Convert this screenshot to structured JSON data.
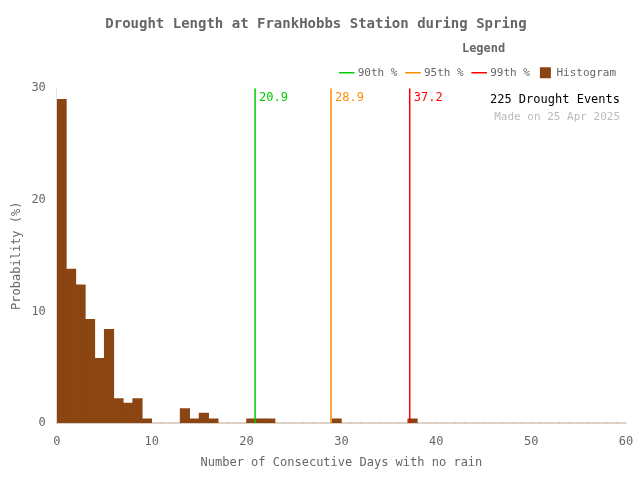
{
  "chart_data": {
    "type": "histogram",
    "title": "Drought Length at FrankHobbs Station during Spring",
    "xlabel": "Number of Consecutive Days with no rain",
    "ylabel": "Probability (%)",
    "bins": [
      0,
      1,
      2,
      3,
      4,
      5,
      6,
      7,
      8,
      9,
      10,
      11,
      12,
      13,
      14,
      15,
      16,
      17,
      18,
      19,
      20,
      21,
      22,
      23,
      24,
      25,
      26,
      27,
      28,
      29,
      30,
      31,
      32,
      33,
      34,
      35,
      36,
      37,
      38,
      39,
      40,
      41,
      42,
      43,
      44,
      45,
      46,
      47,
      48,
      49,
      50,
      51,
      52,
      53,
      54,
      55,
      56,
      57,
      58,
      59,
      60
    ],
    "series": [
      {
        "name": "90th %",
        "type": "vline",
        "color": "#00CC00",
        "x": 20.9,
        "data_labels": true
      },
      {
        "name": "95th %",
        "type": "vline",
        "color": "#FF8C00",
        "x": 28.9,
        "data_labels": true
      },
      {
        "name": "99th %",
        "type": "vline",
        "color": "#FF0000",
        "x": 37.2,
        "data_labels": true
      },
      {
        "name": "Histogram",
        "type": "bar",
        "color": "#8B4513",
        "values": [
          29.0,
          13.8,
          12.4,
          9.3,
          5.8,
          8.4,
          2.2,
          1.8,
          2.2,
          0.4,
          0.0,
          0.0,
          0.0,
          1.3,
          0.4,
          0.9,
          0.4,
          0.0,
          0.0,
          0.0,
          0.4,
          0.4,
          0.4,
          0.0,
          0.0,
          0.0,
          0.0,
          0.0,
          0.0,
          0.4,
          0.0,
          0.0,
          0.0,
          0.0,
          0.0,
          0.0,
          0.0,
          0.4,
          0.0,
          0.0,
          0.0,
          0.0,
          0.0,
          0.0,
          0.0,
          0.0,
          0.0,
          0.0,
          0.0,
          0.0,
          0.0,
          0.0,
          0.0,
          0.0,
          0.0,
          0.0,
          0.0,
          0.0,
          0.0,
          0.0
        ]
      }
    ],
    "xlim": [
      0,
      60
    ],
    "ylim": [
      0,
      30
    ],
    "xticks": [
      0,
      10,
      20,
      30,
      40,
      50,
      60
    ],
    "yticks": [
      0,
      10,
      20,
      30
    ],
    "grid": false,
    "legend": "upper right",
    "legend_title": "Legend",
    "annotations": [
      {
        "text": "225 Drought Events"
      },
      {
        "text": "Made on 25 Apr 2025",
        "color": "#BBBBBB"
      }
    ]
  }
}
